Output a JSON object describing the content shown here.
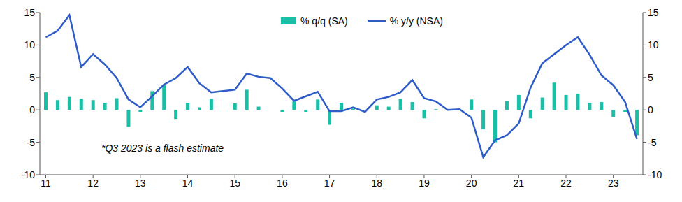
{
  "chart_data": {
    "type": "bar",
    "categories": [
      "11",
      null,
      null,
      null,
      "12",
      null,
      null,
      null,
      "13",
      null,
      null,
      null,
      "14",
      null,
      null,
      null,
      "15",
      null,
      null,
      null,
      "16",
      null,
      null,
      null,
      "17",
      null,
      null,
      null,
      "18",
      null,
      null,
      null,
      "19",
      null,
      null,
      null,
      "20",
      null,
      null,
      null,
      "21",
      null,
      null,
      null,
      "22",
      null,
      null,
      null,
      "23",
      null,
      null
    ],
    "series": [
      {
        "name": "% q/q (SA)",
        "type": "bar",
        "color": "#19bfa6",
        "values": [
          2.7,
          1.5,
          2.0,
          1.7,
          1.5,
          1.1,
          1.8,
          -2.6,
          -0.3,
          2.9,
          3.8,
          -1.4,
          1.1,
          0.4,
          1.7,
          0.0,
          1.0,
          3.1,
          0.5,
          0.0,
          -0.3,
          1.3,
          -0.3,
          1.6,
          -2.3,
          1.1,
          0.2,
          0.0,
          0.7,
          0.5,
          1.7,
          1.2,
          -1.3,
          0.1,
          0.1,
          0.0,
          1.6,
          -3.0,
          -5.0,
          1.4,
          2.3,
          -1.3,
          1.9,
          4.2,
          2.3,
          2.5,
          1.1,
          1.2,
          -1.1,
          -0.3,
          -3.9
        ]
      },
      {
        "name": "% y/y (NSA)",
        "type": "line",
        "axis": "y2",
        "color": "#2e5cc8",
        "values": [
          11.2,
          12.2,
          14.6,
          6.6,
          8.6,
          7.0,
          4.9,
          1.6,
          0.4,
          2.1,
          3.9,
          4.9,
          6.6,
          4.1,
          2.7,
          2.9,
          3.1,
          5.6,
          5.1,
          4.9,
          3.3,
          1.4,
          2.1,
          2.8,
          -0.2,
          -0.2,
          0.4,
          -0.3,
          1.6,
          2.0,
          2.7,
          4.6,
          1.8,
          1.3,
          0.0,
          0.1,
          -1.2,
          -7.3,
          -4.7,
          -3.9,
          -2.1,
          3.4,
          7.2,
          8.6,
          10.0,
          11.2,
          8.5,
          5.3,
          3.8,
          1.2,
          -4.5
        ]
      }
    ],
    "ylim": [
      -10,
      15
    ],
    "yticks": [
      -10,
      -5,
      0,
      5,
      10,
      15
    ],
    "y2lim": [
      -10,
      15
    ],
    "y2ticks": [
      -10,
      -5,
      0,
      5,
      10,
      15
    ],
    "grid": false,
    "legend": "top",
    "annotations": [
      "*Q3 2023 is a flash estimate"
    ]
  }
}
